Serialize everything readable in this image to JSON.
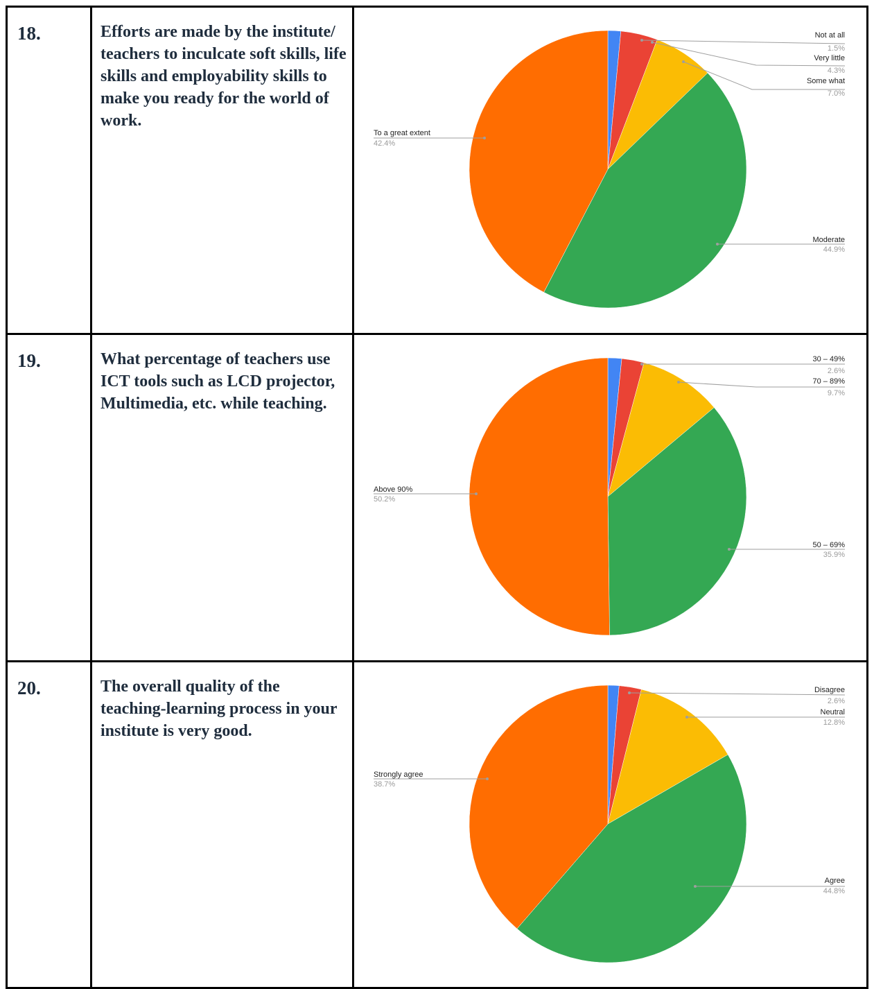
{
  "rows": [
    {
      "num": "18.",
      "question": "Efforts are made by the institute/ teachers to inculcate soft skills, life skills and employability skills to make you ready for the world of work."
    },
    {
      "num": "19.",
      "question": "What percentage of teachers use ICT tools such as LCD projector, Multimedia, etc. while teaching."
    },
    {
      "num": "20.",
      "question": "The overall quality of the teaching-learning process in your institute is very good."
    }
  ],
  "colors": {
    "blue": "#4285f4",
    "red": "#ea4335",
    "yellow": "#fbbc04",
    "green": "#34a853",
    "orange": "#ff6d01"
  },
  "chart_data": [
    {
      "type": "pie",
      "slices": [
        {
          "name": "Not at all",
          "value": 1.5,
          "label": "1.5%",
          "color": "#4285f4"
        },
        {
          "name": "Very little",
          "value": 4.3,
          "label": "4.3%",
          "color": "#ea4335"
        },
        {
          "name": "Some what",
          "value": 7.0,
          "label": "7.0%",
          "color": "#fbbc04"
        },
        {
          "name": "Moderate",
          "value": 44.9,
          "label": "44.9%",
          "color": "#34a853"
        },
        {
          "name": "To a great extent",
          "value": 42.4,
          "label": "42.4%",
          "color": "#ff6d01"
        }
      ]
    },
    {
      "type": "pie",
      "slices": [
        {
          "name": "",
          "value": 1.6,
          "label": "",
          "color": "#4285f4"
        },
        {
          "name": "30 – 49%",
          "value": 2.6,
          "label": "2.6%",
          "color": "#ea4335"
        },
        {
          "name": "70 – 89%",
          "value": 9.7,
          "label": "9.7%",
          "color": "#fbbc04"
        },
        {
          "name": "50 – 69%",
          "value": 35.9,
          "label": "35.9%",
          "color": "#34a853"
        },
        {
          "name": "Above 90%",
          "value": 50.2,
          "label": "50.2%",
          "color": "#ff6d01"
        }
      ]
    },
    {
      "type": "pie",
      "slices": [
        {
          "name": "",
          "value": 1.3,
          "label": "",
          "color": "#4285f4"
        },
        {
          "name": "Disagree",
          "value": 2.6,
          "label": "2.6%",
          "color": "#ea4335"
        },
        {
          "name": "Neutral",
          "value": 12.8,
          "label": "12.8%",
          "color": "#fbbc04"
        },
        {
          "name": "Agree",
          "value": 44.8,
          "label": "44.8%",
          "color": "#34a853"
        },
        {
          "name": "Strongly agree",
          "value": 38.7,
          "label": "38.7%",
          "color": "#ff6d01"
        }
      ]
    }
  ]
}
